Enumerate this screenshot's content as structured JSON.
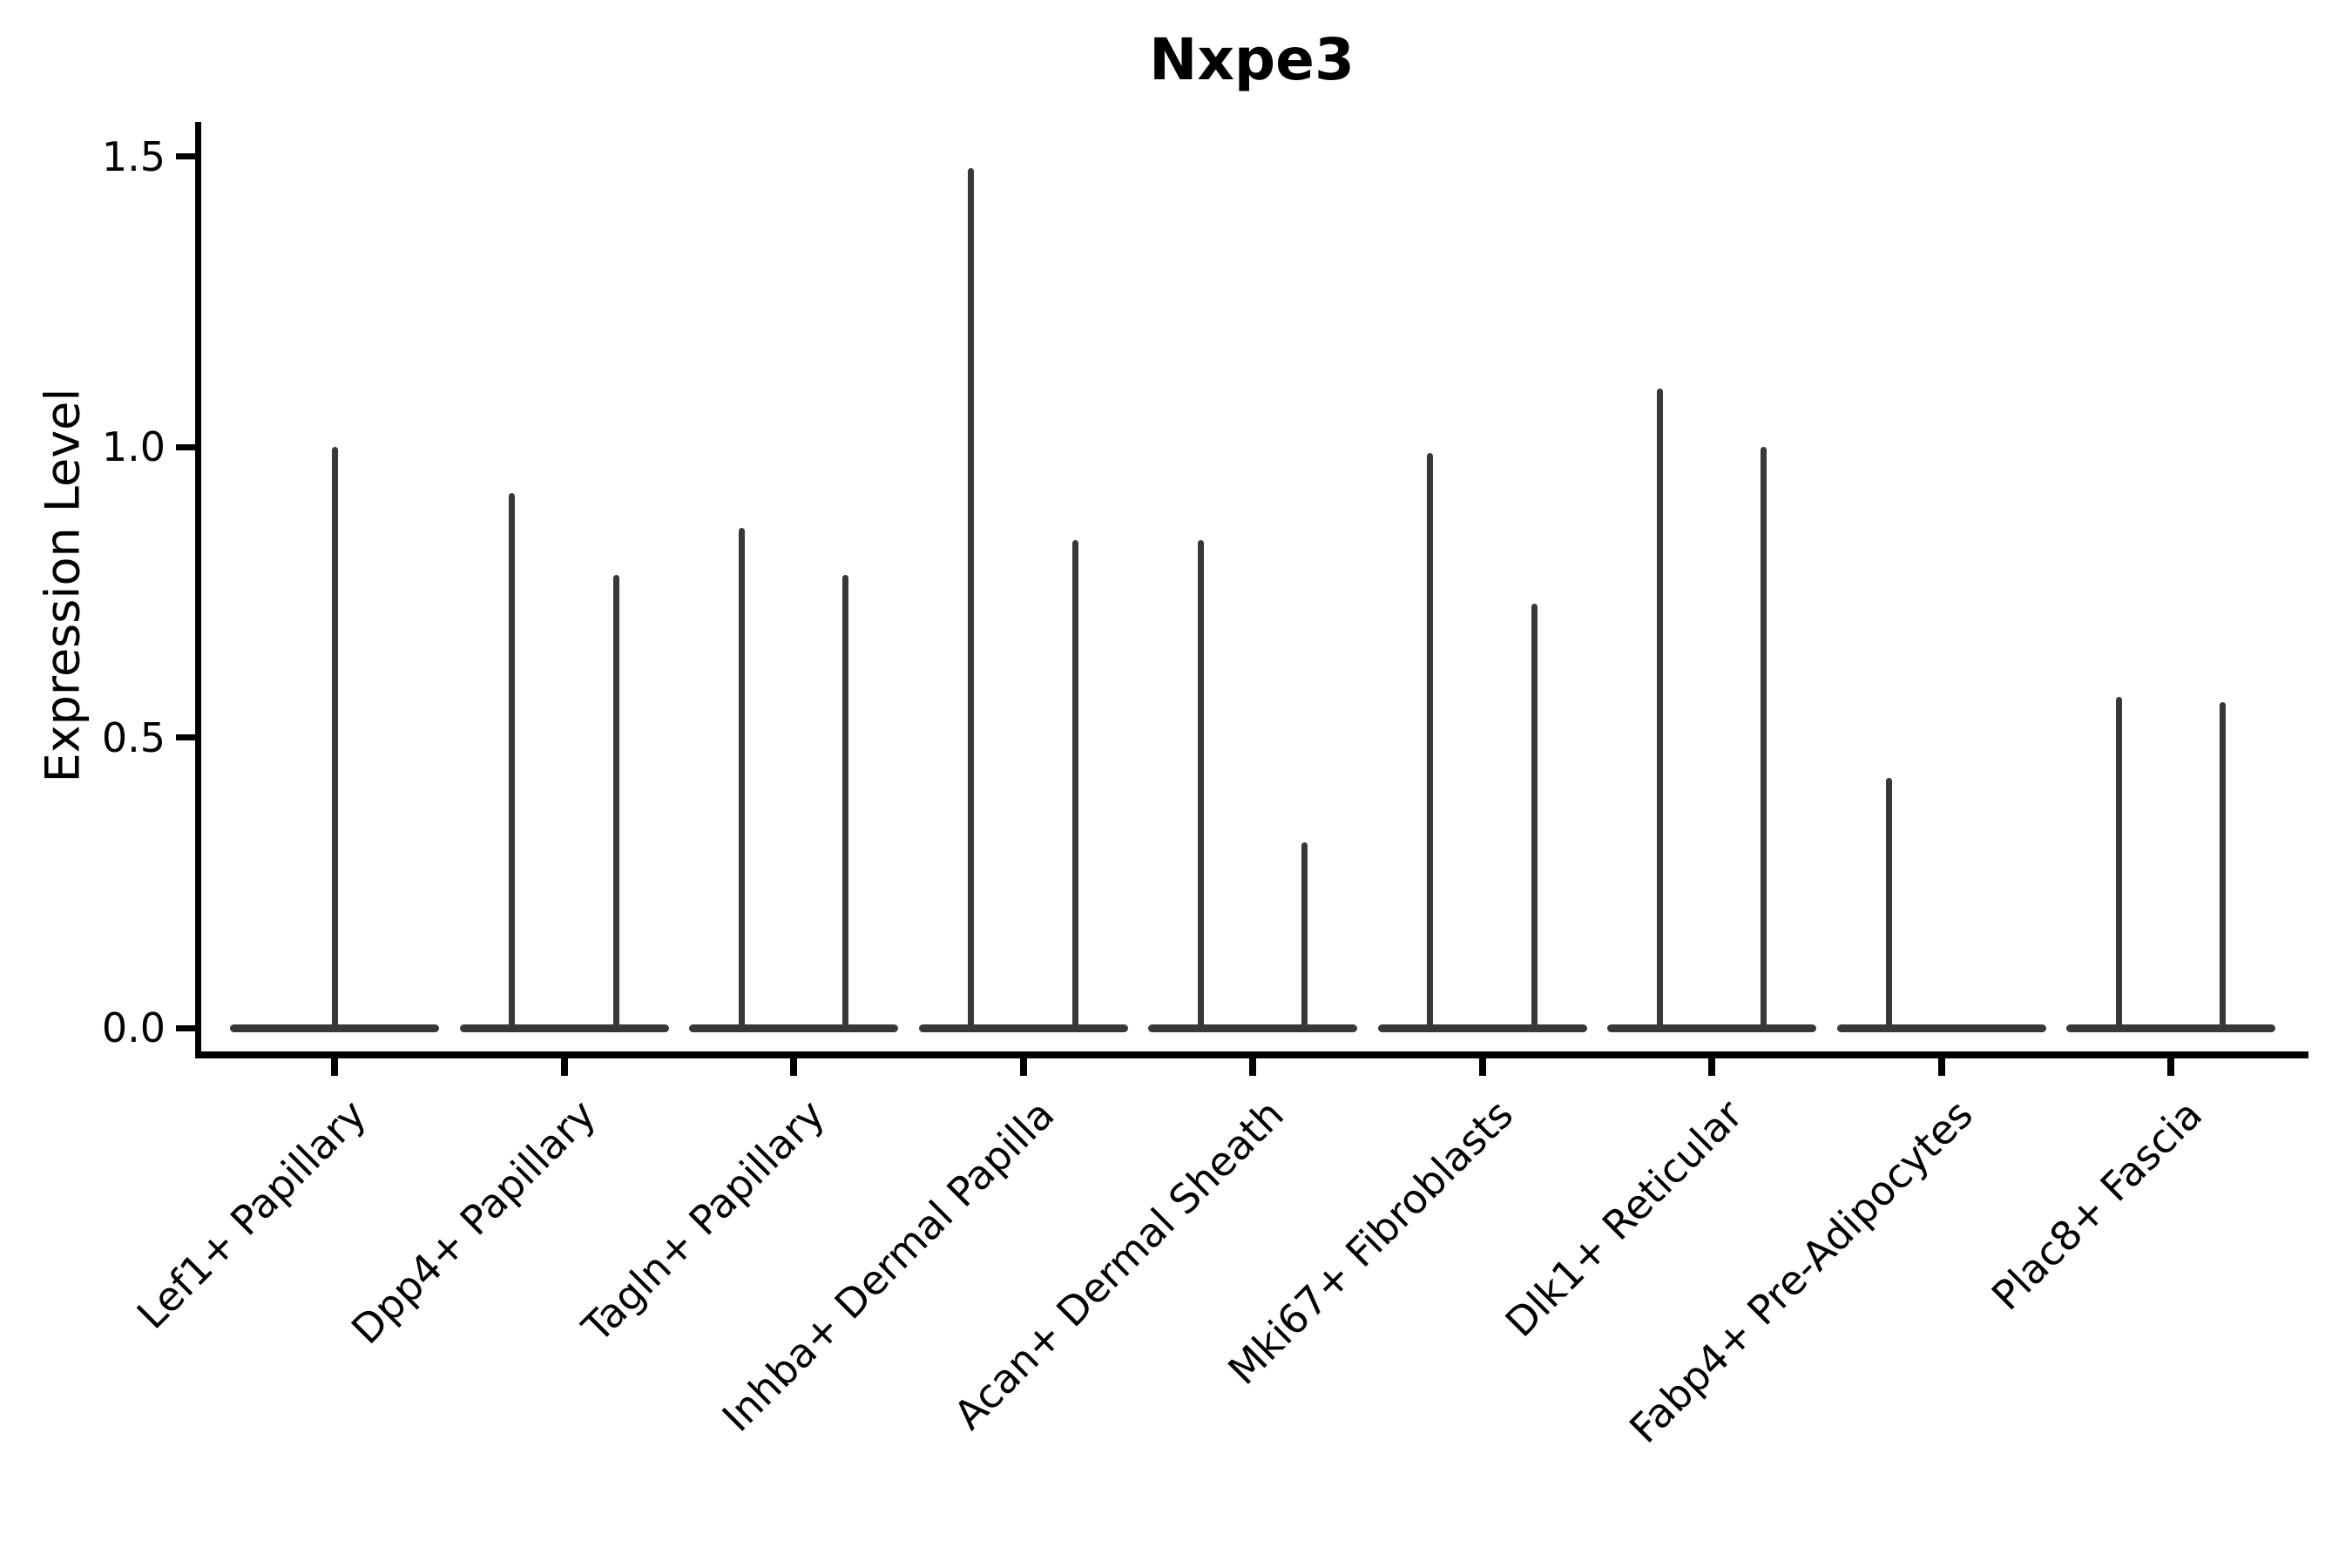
{
  "figure": {
    "background": "#ffffff"
  },
  "chart_data": {
    "type": "violin",
    "title": "Nxpe3",
    "ylabel": "Expression Level",
    "xlabel": "",
    "ylim": [
      0,
      1.55
    ],
    "yticks": [
      {
        "value": 0.0,
        "label": "0.0"
      },
      {
        "value": 0.5,
        "label": "0.5"
      },
      {
        "value": 1.0,
        "label": "1.0"
      },
      {
        "value": 1.5,
        "label": "1.5"
      }
    ],
    "grid": false,
    "legend": "none",
    "colors": {
      "violin": "#383838",
      "axis": "#000000",
      "text": "#000000",
      "background": "#ffffff"
    },
    "categories": [
      "Lef1+ Papillary",
      "Dpp4+ Papillary",
      "Tagln+ Papillary",
      "Inhba+ Dermal Papilla",
      "Acan+ Dermal Sheath",
      "Mki67+ Fibroblasts",
      "Dlk1+ Reticular",
      "Fabp4+ Pre-Adipocytes",
      "Plac8+ Fascia"
    ],
    "violins": [
      {
        "category": "Lef1+ Papillary",
        "spikes": [
          {
            "pos": "center",
            "max": 1.0
          }
        ]
      },
      {
        "category": "Dpp4+ Papillary",
        "spikes": [
          {
            "pos": "left",
            "max": 0.92
          },
          {
            "pos": "right",
            "max": 0.78
          }
        ]
      },
      {
        "category": "Tagln+ Papillary",
        "spikes": [
          {
            "pos": "left",
            "max": 0.86
          },
          {
            "pos": "right",
            "max": 0.78
          }
        ]
      },
      {
        "category": "Inhba+ Dermal Papilla",
        "spikes": [
          {
            "pos": "left",
            "max": 1.48
          },
          {
            "pos": "right",
            "max": 0.84
          }
        ]
      },
      {
        "category": "Acan+ Dermal Sheath",
        "spikes": [
          {
            "pos": "left",
            "max": 0.84
          },
          {
            "pos": "right",
            "max": 0.32
          }
        ]
      },
      {
        "category": "Mki67+ Fibroblasts",
        "spikes": [
          {
            "pos": "left",
            "max": 0.99
          },
          {
            "pos": "right",
            "max": 0.73
          }
        ]
      },
      {
        "category": "Dlk1+ Reticular",
        "spikes": [
          {
            "pos": "left",
            "max": 1.1
          },
          {
            "pos": "right",
            "max": 1.0
          }
        ]
      },
      {
        "category": "Fabp4+ Pre-Adipocytes",
        "spikes": [
          {
            "pos": "left",
            "max": 0.43
          }
        ]
      },
      {
        "category": "Plac8+ Fascia",
        "spikes": [
          {
            "pos": "left",
            "max": 0.57
          },
          {
            "pos": "right",
            "max": 0.56
          }
        ]
      }
    ]
  }
}
